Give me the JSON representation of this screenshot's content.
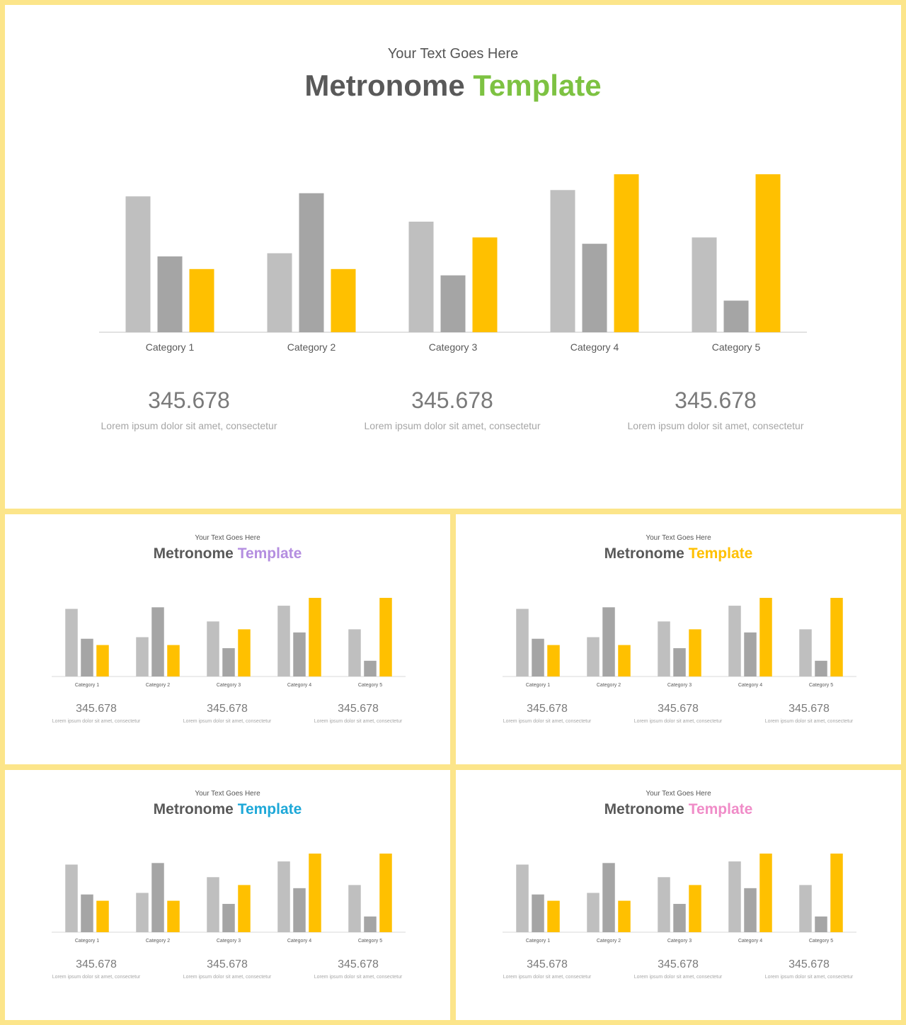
{
  "slides": [
    {
      "subtitle": "Your Text Goes Here",
      "title_main": "Metronome",
      "title_accent": "Template",
      "accent_color": "#7dc242",
      "stats": [
        {
          "value": "345.678",
          "caption": "Lorem ipsum dolor sit amet, consectetur"
        },
        {
          "value": "345.678",
          "caption": "Lorem ipsum dolor sit amet, consectetur"
        },
        {
          "value": "345.678",
          "caption": "Lorem ipsum dolor sit amet, consectetur"
        }
      ]
    },
    {
      "subtitle": "Your Text Goes Here",
      "title_main": "Metronome",
      "title_accent": "Template",
      "accent_color": "#b48ee0",
      "stats": [
        {
          "value": "345.678",
          "caption": "Lorem ipsum dolor sit amet, consectetur"
        },
        {
          "value": "345.678",
          "caption": "Lorem ipsum dolor sit amet, consectetur"
        },
        {
          "value": "345.678",
          "caption": "Lorem ipsum dolor sit amet, consectetur"
        }
      ]
    },
    {
      "subtitle": "Your Text Goes Here",
      "title_main": "Metronome",
      "title_accent": "Template",
      "accent_color": "#ffc000",
      "stats": [
        {
          "value": "345.678",
          "caption": "Lorem ipsum dolor sit amet, consectetur"
        },
        {
          "value": "345.678",
          "caption": "Lorem ipsum dolor sit amet, consectetur"
        },
        {
          "value": "345.678",
          "caption": "Lorem ipsum dolor sit amet, consectetur"
        }
      ]
    },
    {
      "subtitle": "Your Text Goes Here",
      "title_main": "Metronome",
      "title_accent": "Template",
      "accent_color": "#1ea8d8",
      "stats": [
        {
          "value": "345.678",
          "caption": "Lorem ipsum dolor sit amet, consectetur"
        },
        {
          "value": "345.678",
          "caption": "Lorem ipsum dolor sit amet, consectetur"
        },
        {
          "value": "345.678",
          "caption": "Lorem ipsum dolor sit amet, consectetur"
        }
      ]
    },
    {
      "subtitle": "Your Text Goes Here",
      "title_main": "Metronome",
      "title_accent": "Template",
      "accent_color": "#f08cc8",
      "stats": [
        {
          "value": "345.678",
          "caption": "Lorem ipsum dolor sit amet, consectetur"
        },
        {
          "value": "345.678",
          "caption": "Lorem ipsum dolor sit amet, consectetur"
        },
        {
          "value": "345.678",
          "caption": "Lorem ipsum dolor sit amet, consectetur"
        }
      ]
    }
  ],
  "chart_data": {
    "type": "bar",
    "categories": [
      "Category 1",
      "Category 2",
      "Category 3",
      "Category 4",
      "Category 5"
    ],
    "series": [
      {
        "values": [
          4.3,
          2.5,
          3.5,
          4.5,
          3.0
        ],
        "color": "#bfbfbf"
      },
      {
        "values": [
          2.4,
          4.4,
          1.8,
          2.8,
          1.0
        ],
        "color": "#a5a5a5"
      },
      {
        "values": [
          2.0,
          2.0,
          3.0,
          5.0,
          5.0
        ],
        "color": "#ffc000"
      }
    ],
    "ylim": [
      0,
      5
    ],
    "grid": false,
    "legend": "none",
    "title": "",
    "xlabel": "",
    "ylabel": ""
  },
  "colors": {
    "background_frame": "#fce58a",
    "title_gray": "#595959",
    "axis_line": "#d9d9d9"
  }
}
